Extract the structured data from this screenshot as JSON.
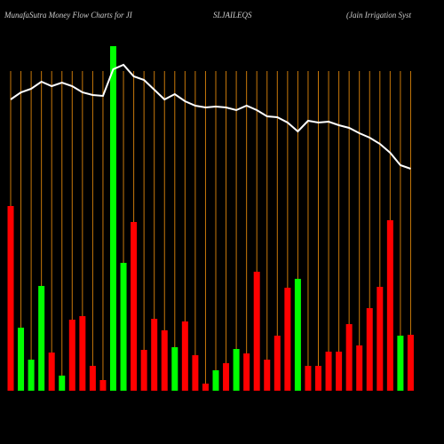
{
  "chart_data": {
    "type": "bar",
    "title": [
      "MunafaSutra  Money Flow  Charts for JI",
      "SLJAILEQS",
      "(Jain  Irrigation  Syst"
    ],
    "categories": [
      null,
      null,
      null,
      null,
      null,
      null,
      null,
      null,
      null,
      null,
      null,
      null,
      null,
      null,
      null,
      null,
      null,
      null,
      null,
      null,
      null,
      null,
      null,
      null,
      null,
      null,
      null,
      null,
      null,
      null,
      null,
      null,
      null,
      null,
      null,
      null,
      null,
      null,
      null,
      null
    ],
    "values": [
      208,
      71,
      35,
      118,
      43,
      17,
      80,
      84,
      28,
      12,
      388,
      144,
      190,
      46,
      81,
      68,
      49,
      78,
      40,
      8,
      23,
      31,
      47,
      42,
      134,
      35,
      62,
      116,
      126,
      28,
      28,
      44,
      44,
      75,
      51,
      93,
      117,
      192,
      62,
      63
    ],
    "colors": [
      "#ff0000",
      "#00ff00",
      "#00ff00",
      "#00ff00",
      "#ff0000",
      "#00ff00",
      "#ff0000",
      "#ff0000",
      "#ff0000",
      "#ff0000",
      "#00ff00",
      "#00ff00",
      "#ff0000",
      "#ff0000",
      "#ff0000",
      "#ff0000",
      "#00ff00",
      "#ff0000",
      "#ff0000",
      "#ff0000",
      "#00ff00",
      "#ff0000",
      "#00ff00",
      "#ff0000",
      "#ff0000",
      "#ff0000",
      "#ff0000",
      "#ff0000",
      "#00ff00",
      "#ff0000",
      "#ff0000",
      "#ff0000",
      "#ff0000",
      "#ff0000",
      "#ff0000",
      "#ff0000",
      "#ff0000",
      "#ff0000",
      "#00ff00",
      "#ff0000"
    ],
    "line": {
      "color": "#ffffff",
      "values": [
        328,
        336,
        340,
        348,
        343,
        347,
        343,
        336,
        333,
        332,
        362,
        367,
        354,
        350,
        339,
        328,
        334,
        326,
        321,
        319,
        320,
        319,
        316,
        321,
        316,
        309,
        308,
        302,
        292,
        304,
        302,
        303,
        299,
        296,
        290,
        285,
        278,
        268,
        254,
        250
      ]
    },
    "ylim": [
      0,
      400
    ],
    "grid_color": "#c8780a"
  }
}
